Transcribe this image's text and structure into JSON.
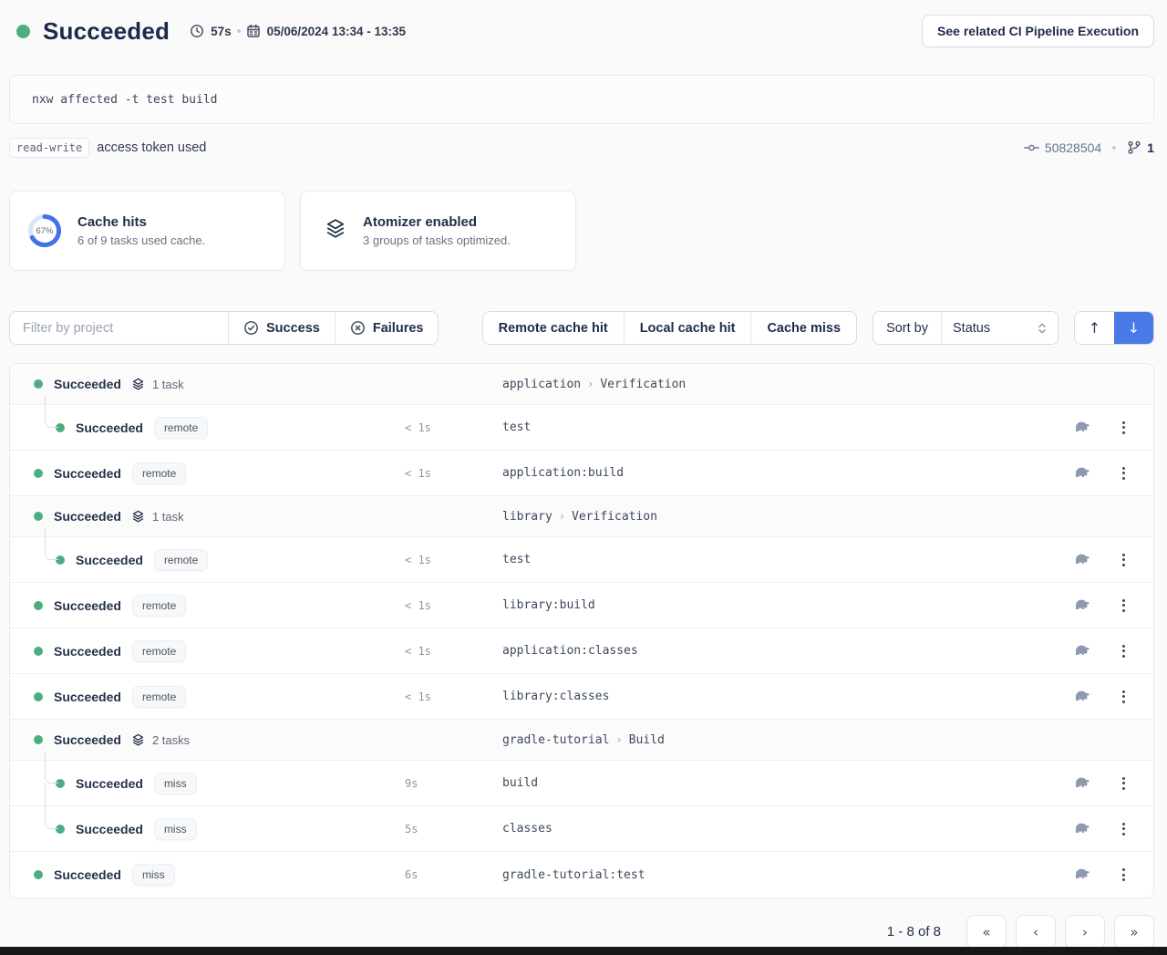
{
  "header": {
    "status": "Succeeded",
    "duration": "57s",
    "date_range": "05/06/2024 13:34 - 13:35",
    "related_button": "See related CI Pipeline Execution"
  },
  "command": "nxw affected -t test build",
  "token": {
    "badge": "read-write",
    "text": "access token used",
    "commit_id": "50828504",
    "branch_count": "1"
  },
  "cards": [
    {
      "title": "Cache hits",
      "subtitle": "6 of 9 tasks used cache.",
      "percent": "67%"
    },
    {
      "title": "Atomizer enabled",
      "subtitle": "3 groups of tasks optimized."
    }
  ],
  "filters": {
    "project_placeholder": "Filter by project",
    "success_label": "Success",
    "failures_label": "Failures",
    "cache_buttons": [
      "Remote cache hit",
      "Local cache hit",
      "Cache miss"
    ],
    "sort_label": "Sort by",
    "sort_value": "Status"
  },
  "rows": [
    {
      "type": "group",
      "status": "Succeeded",
      "count": "1 task",
      "project": "application",
      "target": "Verification"
    },
    {
      "type": "task",
      "status": "Succeeded",
      "badge": "remote",
      "duration": "< 1s",
      "name": "test",
      "indent": true,
      "connector": "single"
    },
    {
      "type": "task",
      "status": "Succeeded",
      "badge": "remote",
      "duration": "< 1s",
      "name": "application:build"
    },
    {
      "type": "group",
      "status": "Succeeded",
      "count": "1 task",
      "project": "library",
      "target": "Verification"
    },
    {
      "type": "task",
      "status": "Succeeded",
      "badge": "remote",
      "duration": "< 1s",
      "name": "test",
      "indent": true,
      "connector": "single"
    },
    {
      "type": "task",
      "status": "Succeeded",
      "badge": "remote",
      "duration": "< 1s",
      "name": "library:build"
    },
    {
      "type": "task",
      "status": "Succeeded",
      "badge": "remote",
      "duration": "< 1s",
      "name": "application:classes"
    },
    {
      "type": "task",
      "status": "Succeeded",
      "badge": "remote",
      "duration": "< 1s",
      "name": "library:classes"
    },
    {
      "type": "group",
      "status": "Succeeded",
      "count": "2 tasks",
      "project": "gradle-tutorial",
      "target": "Build"
    },
    {
      "type": "task",
      "status": "Succeeded",
      "badge": "miss",
      "duration": "9s",
      "name": "build",
      "indent": true,
      "connector": "first"
    },
    {
      "type": "task",
      "status": "Succeeded",
      "badge": "miss",
      "duration": "5s",
      "name": "classes",
      "indent": true,
      "connector": "last"
    },
    {
      "type": "task",
      "status": "Succeeded",
      "badge": "miss",
      "duration": "6s",
      "name": "gradle-tutorial:test"
    }
  ],
  "pagination": {
    "label": "1 - 8 of 8",
    "first": "«",
    "prev": "‹",
    "next": "›",
    "last": "»"
  },
  "colors": {
    "accent_blue": "#4a7ae8",
    "success_green": "#4cad80"
  }
}
